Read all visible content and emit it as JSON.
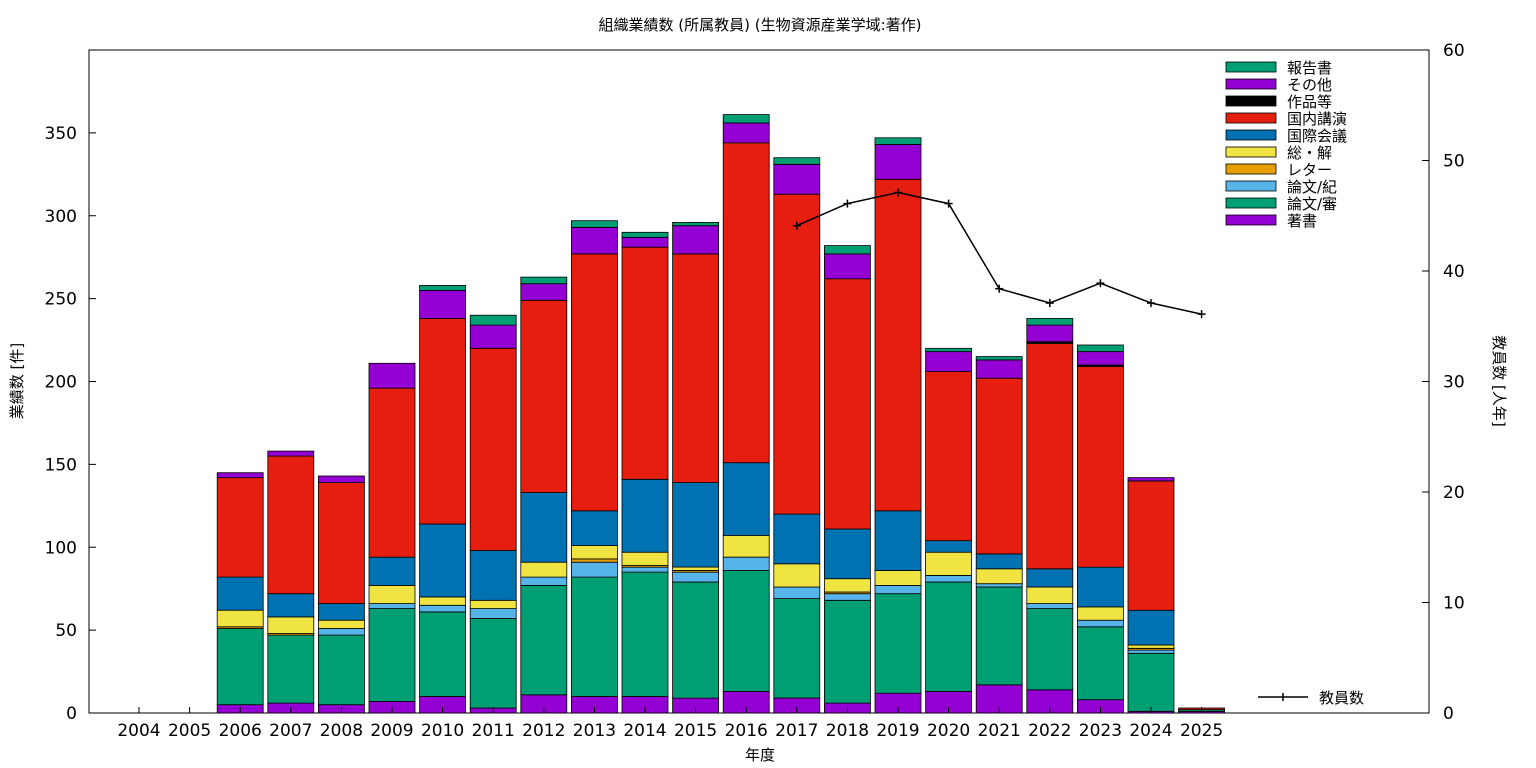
{
  "chart_data": {
    "type": "bar",
    "stacked": true,
    "title": "組織業績数 (所属教員) (生物資源産業学域:著作)",
    "xlabel": "年度",
    "ylabel": "業績数 [件]",
    "y2label": "教員数 [人年]",
    "ylim": [
      0,
      400
    ],
    "y2lim": [
      0,
      60
    ],
    "yticks": [
      "0",
      "50",
      "100",
      "150",
      "200",
      "250",
      "300",
      "350"
    ],
    "y2ticks": [
      "0",
      "10",
      "20",
      "30",
      "40",
      "50",
      "60"
    ],
    "grid": false,
    "legend_position": "top-right",
    "categories": [
      "2004",
      "2005",
      "2006",
      "2007",
      "2008",
      "2009",
      "2010",
      "2011",
      "2012",
      "2013",
      "2014",
      "2015",
      "2016",
      "2017",
      "2018",
      "2019",
      "2020",
      "2021",
      "2022",
      "2023",
      "2024",
      "2025"
    ],
    "series": [
      {
        "name": "著書",
        "color": "#9400d3",
        "values": [
          0,
          0,
          5,
          6,
          5,
          7,
          10,
          3,
          11,
          10,
          10,
          9,
          13,
          9,
          6,
          12,
          13,
          17,
          14,
          8,
          1,
          1
        ]
      },
      {
        "name": "論文/審",
        "color": "#009e73",
        "values": [
          0,
          0,
          46,
          41,
          42,
          56,
          51,
          54,
          66,
          72,
          75,
          70,
          73,
          60,
          62,
          60,
          66,
          59,
          49,
          44,
          35,
          1
        ]
      },
      {
        "name": "論文/紀",
        "color": "#56b4e9",
        "values": [
          0,
          0,
          0,
          0,
          4,
          3,
          4,
          6,
          5,
          9,
          3,
          6,
          8,
          7,
          4,
          5,
          4,
          2,
          3,
          4,
          2,
          0
        ]
      },
      {
        "name": "レター",
        "color": "#e69f00",
        "values": [
          0,
          0,
          1,
          1,
          0,
          0,
          0,
          0,
          0,
          2,
          1,
          1,
          0,
          0,
          1,
          0,
          0,
          0,
          0,
          0,
          1,
          0
        ]
      },
      {
        "name": "総・解",
        "color": "#f0e442",
        "values": [
          0,
          0,
          10,
          10,
          5,
          11,
          5,
          5,
          9,
          8,
          8,
          2,
          13,
          14,
          8,
          9,
          14,
          9,
          10,
          8,
          2,
          0
        ]
      },
      {
        "name": "国際会議",
        "color": "#0072b2",
        "values": [
          0,
          0,
          20,
          14,
          10,
          17,
          44,
          30,
          42,
          21,
          44,
          51,
          44,
          30,
          30,
          36,
          7,
          9,
          11,
          24,
          21,
          0
        ]
      },
      {
        "name": "国内講演",
        "color": "#e51e10",
        "values": [
          0,
          0,
          60,
          83,
          73,
          102,
          124,
          122,
          116,
          155,
          140,
          138,
          193,
          193,
          151,
          200,
          102,
          106,
          136,
          121,
          78,
          1
        ]
      },
      {
        "name": "作品等",
        "color": "#000000",
        "values": [
          0,
          0,
          0,
          0,
          0,
          0,
          0,
          0,
          0,
          0,
          0,
          0,
          0,
          0,
          0,
          0,
          0,
          0,
          1,
          1,
          0,
          0
        ]
      },
      {
        "name": "その他",
        "color": "#9400d3",
        "values": [
          0,
          0,
          3,
          3,
          4,
          15,
          17,
          14,
          10,
          16,
          6,
          17,
          12,
          18,
          15,
          21,
          12,
          11,
          10,
          8,
          2,
          0
        ]
      },
      {
        "name": "報告書",
        "color": "#009e73",
        "values": [
          0,
          0,
          0,
          0,
          0,
          0,
          3,
          6,
          4,
          4,
          3,
          2,
          5,
          4,
          5,
          4,
          2,
          2,
          4,
          4,
          0,
          0
        ]
      }
    ],
    "line_series": {
      "name": "教員数",
      "color": "#000000",
      "axis": "y2",
      "categories": [
        "2017",
        "2018",
        "2019",
        "2020",
        "2021",
        "2022",
        "2023",
        "2024",
        "2025"
      ],
      "values": [
        44.1,
        46.1,
        47.1,
        46.1,
        38.4,
        37.1,
        38.9,
        37.1,
        36.1
      ]
    }
  }
}
